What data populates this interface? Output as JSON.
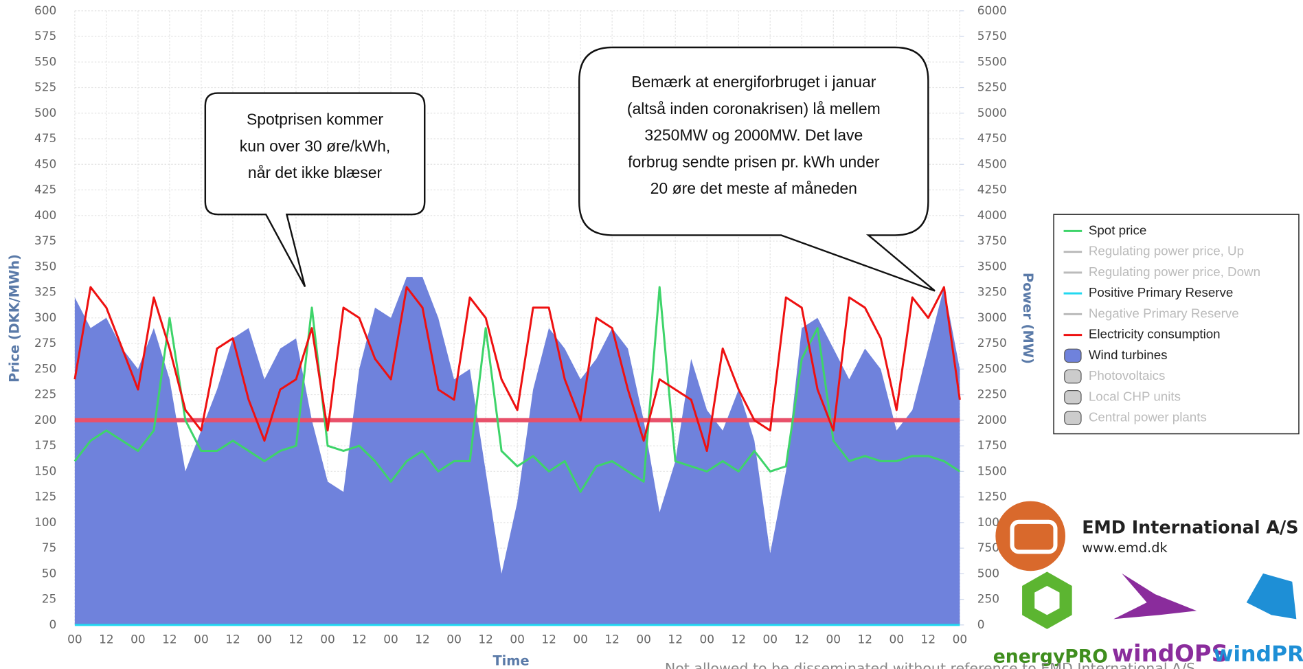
{
  "chart_data": {
    "type": "area-line",
    "x_label": "Time",
    "y_label": "Price (DKK/MWh)",
    "y2_label": "Power (MW)",
    "xlim": [
      0,
      336
    ],
    "xticks": [
      {
        "value": 0,
        "label": "00"
      },
      {
        "value": 12,
        "label": "12"
      },
      {
        "value": 24,
        "label": "00"
      },
      {
        "value": 36,
        "label": "12"
      },
      {
        "value": 48,
        "label": "00"
      },
      {
        "value": 60,
        "label": "12"
      },
      {
        "value": 72,
        "label": "00"
      },
      {
        "value": 84,
        "label": "12"
      },
      {
        "value": 96,
        "label": "00"
      },
      {
        "value": 108,
        "label": "12"
      },
      {
        "value": 120,
        "label": "00"
      },
      {
        "value": 132,
        "label": "12"
      },
      {
        "value": 144,
        "label": "00"
      },
      {
        "value": 156,
        "label": "12"
      },
      {
        "value": 168,
        "label": "00"
      },
      {
        "value": 180,
        "label": "12"
      },
      {
        "value": 192,
        "label": "00"
      },
      {
        "value": 204,
        "label": "12"
      },
      {
        "value": 216,
        "label": "00"
      },
      {
        "value": 228,
        "label": "12"
      },
      {
        "value": 240,
        "label": "00"
      },
      {
        "value": 252,
        "label": "12"
      },
      {
        "value": 264,
        "label": "00"
      },
      {
        "value": 276,
        "label": "12"
      },
      {
        "value": 288,
        "label": "00"
      },
      {
        "value": 300,
        "label": "12"
      },
      {
        "value": 312,
        "label": "00"
      },
      {
        "value": 324,
        "label": "12"
      },
      {
        "value": 336,
        "label": "00"
      }
    ],
    "ylim": [
      0,
      600
    ],
    "yticks": [
      0,
      25,
      50,
      75,
      100,
      125,
      150,
      175,
      200,
      225,
      250,
      275,
      300,
      325,
      350,
      375,
      400,
      425,
      450,
      475,
      500,
      525,
      550,
      575,
      600
    ],
    "y2lim": [
      0,
      6000
    ],
    "y2ticks": [
      0,
      250,
      500,
      750,
      1000,
      1250,
      1500,
      1750,
      2000,
      2250,
      2500,
      2750,
      3000,
      3250,
      3500,
      3750,
      4000,
      4250,
      4500,
      4750,
      5000,
      5250,
      5500,
      5750,
      6000
    ],
    "grid": true,
    "reference_line": {
      "value": 200,
      "color": "#e8506a"
    },
    "x": [
      0,
      6,
      12,
      18,
      24,
      30,
      36,
      42,
      48,
      54,
      60,
      66,
      72,
      78,
      84,
      90,
      96,
      102,
      108,
      114,
      120,
      126,
      132,
      138,
      144,
      150,
      156,
      162,
      168,
      174,
      180,
      186,
      192,
      198,
      204,
      210,
      216,
      222,
      228,
      234,
      240,
      246,
      252,
      258,
      264,
      270,
      276,
      282,
      288,
      294,
      300,
      306,
      312,
      318,
      324,
      330,
      336
    ],
    "series": [
      {
        "name": "Spot price",
        "color": "#3ed46a",
        "kind": "line",
        "axis": "y",
        "visible": true,
        "values": [
          160,
          180,
          190,
          180,
          170,
          190,
          300,
          200,
          170,
          170,
          180,
          170,
          160,
          170,
          175,
          310,
          175,
          170,
          175,
          160,
          140,
          160,
          170,
          150,
          160,
          160,
          290,
          170,
          155,
          165,
          150,
          160,
          130,
          155,
          160,
          150,
          140,
          330,
          160,
          155,
          150,
          160,
          150,
          170,
          150,
          155,
          260,
          290,
          180,
          160,
          165,
          160,
          160,
          165,
          165,
          160,
          150
        ]
      },
      {
        "name": "Regulating power price, Up",
        "color": "#bbbbbb",
        "kind": "line",
        "visible": false
      },
      {
        "name": "Regulating power price, Down",
        "color": "#bbbbbb",
        "kind": "line",
        "visible": false
      },
      {
        "name": "Positive Primary Reserve",
        "color": "#22d8f0",
        "kind": "line",
        "axis": "y2",
        "visible": true,
        "values": [
          0,
          0,
          0,
          0,
          0,
          0,
          0,
          0,
          0,
          0,
          0,
          0,
          0,
          0,
          0,
          0,
          0,
          0,
          0,
          0,
          0,
          0,
          0,
          0,
          0,
          0,
          0,
          0,
          0,
          0,
          0,
          0,
          0,
          0,
          0,
          0,
          0,
          0,
          0,
          0,
          0,
          0,
          0,
          0,
          0,
          0,
          0,
          0,
          0,
          0,
          0,
          0,
          0,
          0,
          0,
          0,
          0
        ]
      },
      {
        "name": "Negative Primary Reserve",
        "color": "#bbbbbb",
        "kind": "line",
        "visible": false
      },
      {
        "name": "Electricity consumption",
        "color": "#ee1111",
        "kind": "line",
        "axis": "y2",
        "visible": true,
        "values": [
          2400,
          3300,
          3100,
          2700,
          2300,
          3200,
          2700,
          2100,
          1900,
          2700,
          2800,
          2200,
          1800,
          2300,
          2400,
          2900,
          1900,
          3100,
          3000,
          2600,
          2400,
          3300,
          3100,
          2300,
          2200,
          3200,
          3000,
          2400,
          2100,
          3100,
          3100,
          2400,
          2000,
          3000,
          2900,
          2300,
          1800,
          2400,
          2300,
          2200,
          1700,
          2700,
          2300,
          2000,
          1900,
          3200,
          3100,
          2300,
          1900,
          3200,
          3100,
          2800,
          2100,
          3200,
          3000,
          3300,
          2200
        ]
      },
      {
        "name": "Wind turbines",
        "color": "#6f82dc",
        "kind": "area",
        "axis": "y2",
        "visible": true,
        "values": [
          3200,
          2900,
          3000,
          2700,
          2500,
          2900,
          2400,
          1500,
          1900,
          2300,
          2800,
          2900,
          2400,
          2700,
          2800,
          2000,
          1400,
          1300,
          2500,
          3100,
          3000,
          3400,
          3400,
          3000,
          2400,
          2500,
          1500,
          500,
          1200,
          2300,
          2900,
          2700,
          2400,
          2600,
          2900,
          2700,
          2000,
          1100,
          1600,
          2600,
          2100,
          1900,
          2300,
          1800,
          700,
          1500,
          2900,
          3000,
          2700,
          2400,
          2700,
          2500,
          1900,
          2100,
          2700,
          3300,
          2500
        ]
      },
      {
        "name": "Photovoltaics",
        "color": "#cccccc",
        "kind": "area",
        "visible": false
      },
      {
        "name": "Local CHP units",
        "color": "#cccccc",
        "kind": "area",
        "visible": false
      },
      {
        "name": "Central power plants",
        "color": "#cccccc",
        "kind": "area",
        "visible": false
      }
    ],
    "annotations": [
      {
        "lines": [
          "Spotprisen kommer",
          "kun over 30 øre/kWh,",
          "når det ikke blæser"
        ]
      },
      {
        "lines": [
          "Bemærk at energiforbruget i januar",
          "(altså inden coronakrisen) lå mellem",
          "3250MW og 2000MW. Det lave",
          "forbrug sendte prisen pr. kWh under",
          "20 øre det meste af måneden"
        ]
      }
    ]
  },
  "branding": {
    "company": "EMD International  A/S",
    "url": "www.emd.dk",
    "products": [
      "energyPRO",
      "windOPS",
      "windPRO"
    ],
    "footer": "Not allowed to be disseminated without reference to EMD International A/S"
  }
}
